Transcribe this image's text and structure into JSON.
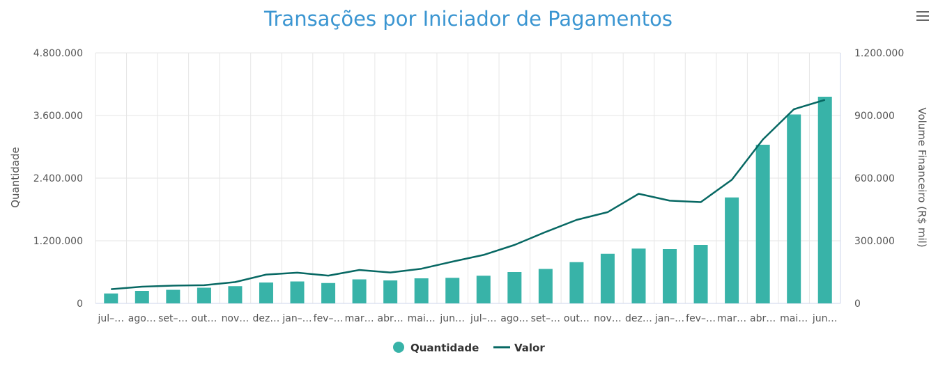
{
  "chart_title": "Transações por Iniciador de Pagamentos",
  "menu_icon": "hamburger-menu-icon",
  "colors": {
    "title": "#3a95d1",
    "bars": "#38b3a8",
    "line": "#076863"
  },
  "chart_data": {
    "type": "bar",
    "title": "Transações por Iniciador de Pagamentos",
    "categories": [
      "jul–…",
      "ago…",
      "set–…",
      "out…",
      "nov…",
      "dez…",
      "jan–…",
      "fev–…",
      "mar…",
      "abr…",
      "mai…",
      "jun…",
      "jul–…",
      "ago…",
      "set–…",
      "out…",
      "nov…",
      "dez…",
      "jan–…",
      "fev–…",
      "mar…",
      "abr…",
      "mai…",
      "jun…"
    ],
    "y_left": {
      "label": "Quantidade",
      "range": [
        0,
        4800000
      ],
      "tick_labels": [
        "0",
        "1.200.000",
        "2.400.000",
        "3.600.000",
        "4.800.000"
      ]
    },
    "y_right": {
      "label": "Volume Financeiro (R$ mil)",
      "range": [
        0,
        1200000
      ],
      "tick_labels": [
        "0",
        "300.000",
        "600.000",
        "900.000",
        "1.200.000"
      ]
    },
    "grid": true,
    "legend_position": "bottom",
    "series": [
      {
        "name": "Quantidade",
        "type": "bar",
        "axis": "left",
        "values": [
          190000,
          240000,
          260000,
          300000,
          330000,
          400000,
          420000,
          390000,
          460000,
          440000,
          480000,
          490000,
          530000,
          600000,
          660000,
          790000,
          950000,
          1050000,
          1040000,
          1120000,
          2030000,
          3040000,
          3620000,
          3960000
        ]
      },
      {
        "name": "Valor",
        "type": "line",
        "axis": "right",
        "values": [
          68000,
          80000,
          85000,
          87000,
          102000,
          138000,
          147000,
          133000,
          160000,
          148000,
          166000,
          200000,
          232000,
          280000,
          342000,
          400000,
          437000,
          525000,
          492000,
          485000,
          592000,
          785000,
          930000,
          975000
        ]
      }
    ]
  }
}
